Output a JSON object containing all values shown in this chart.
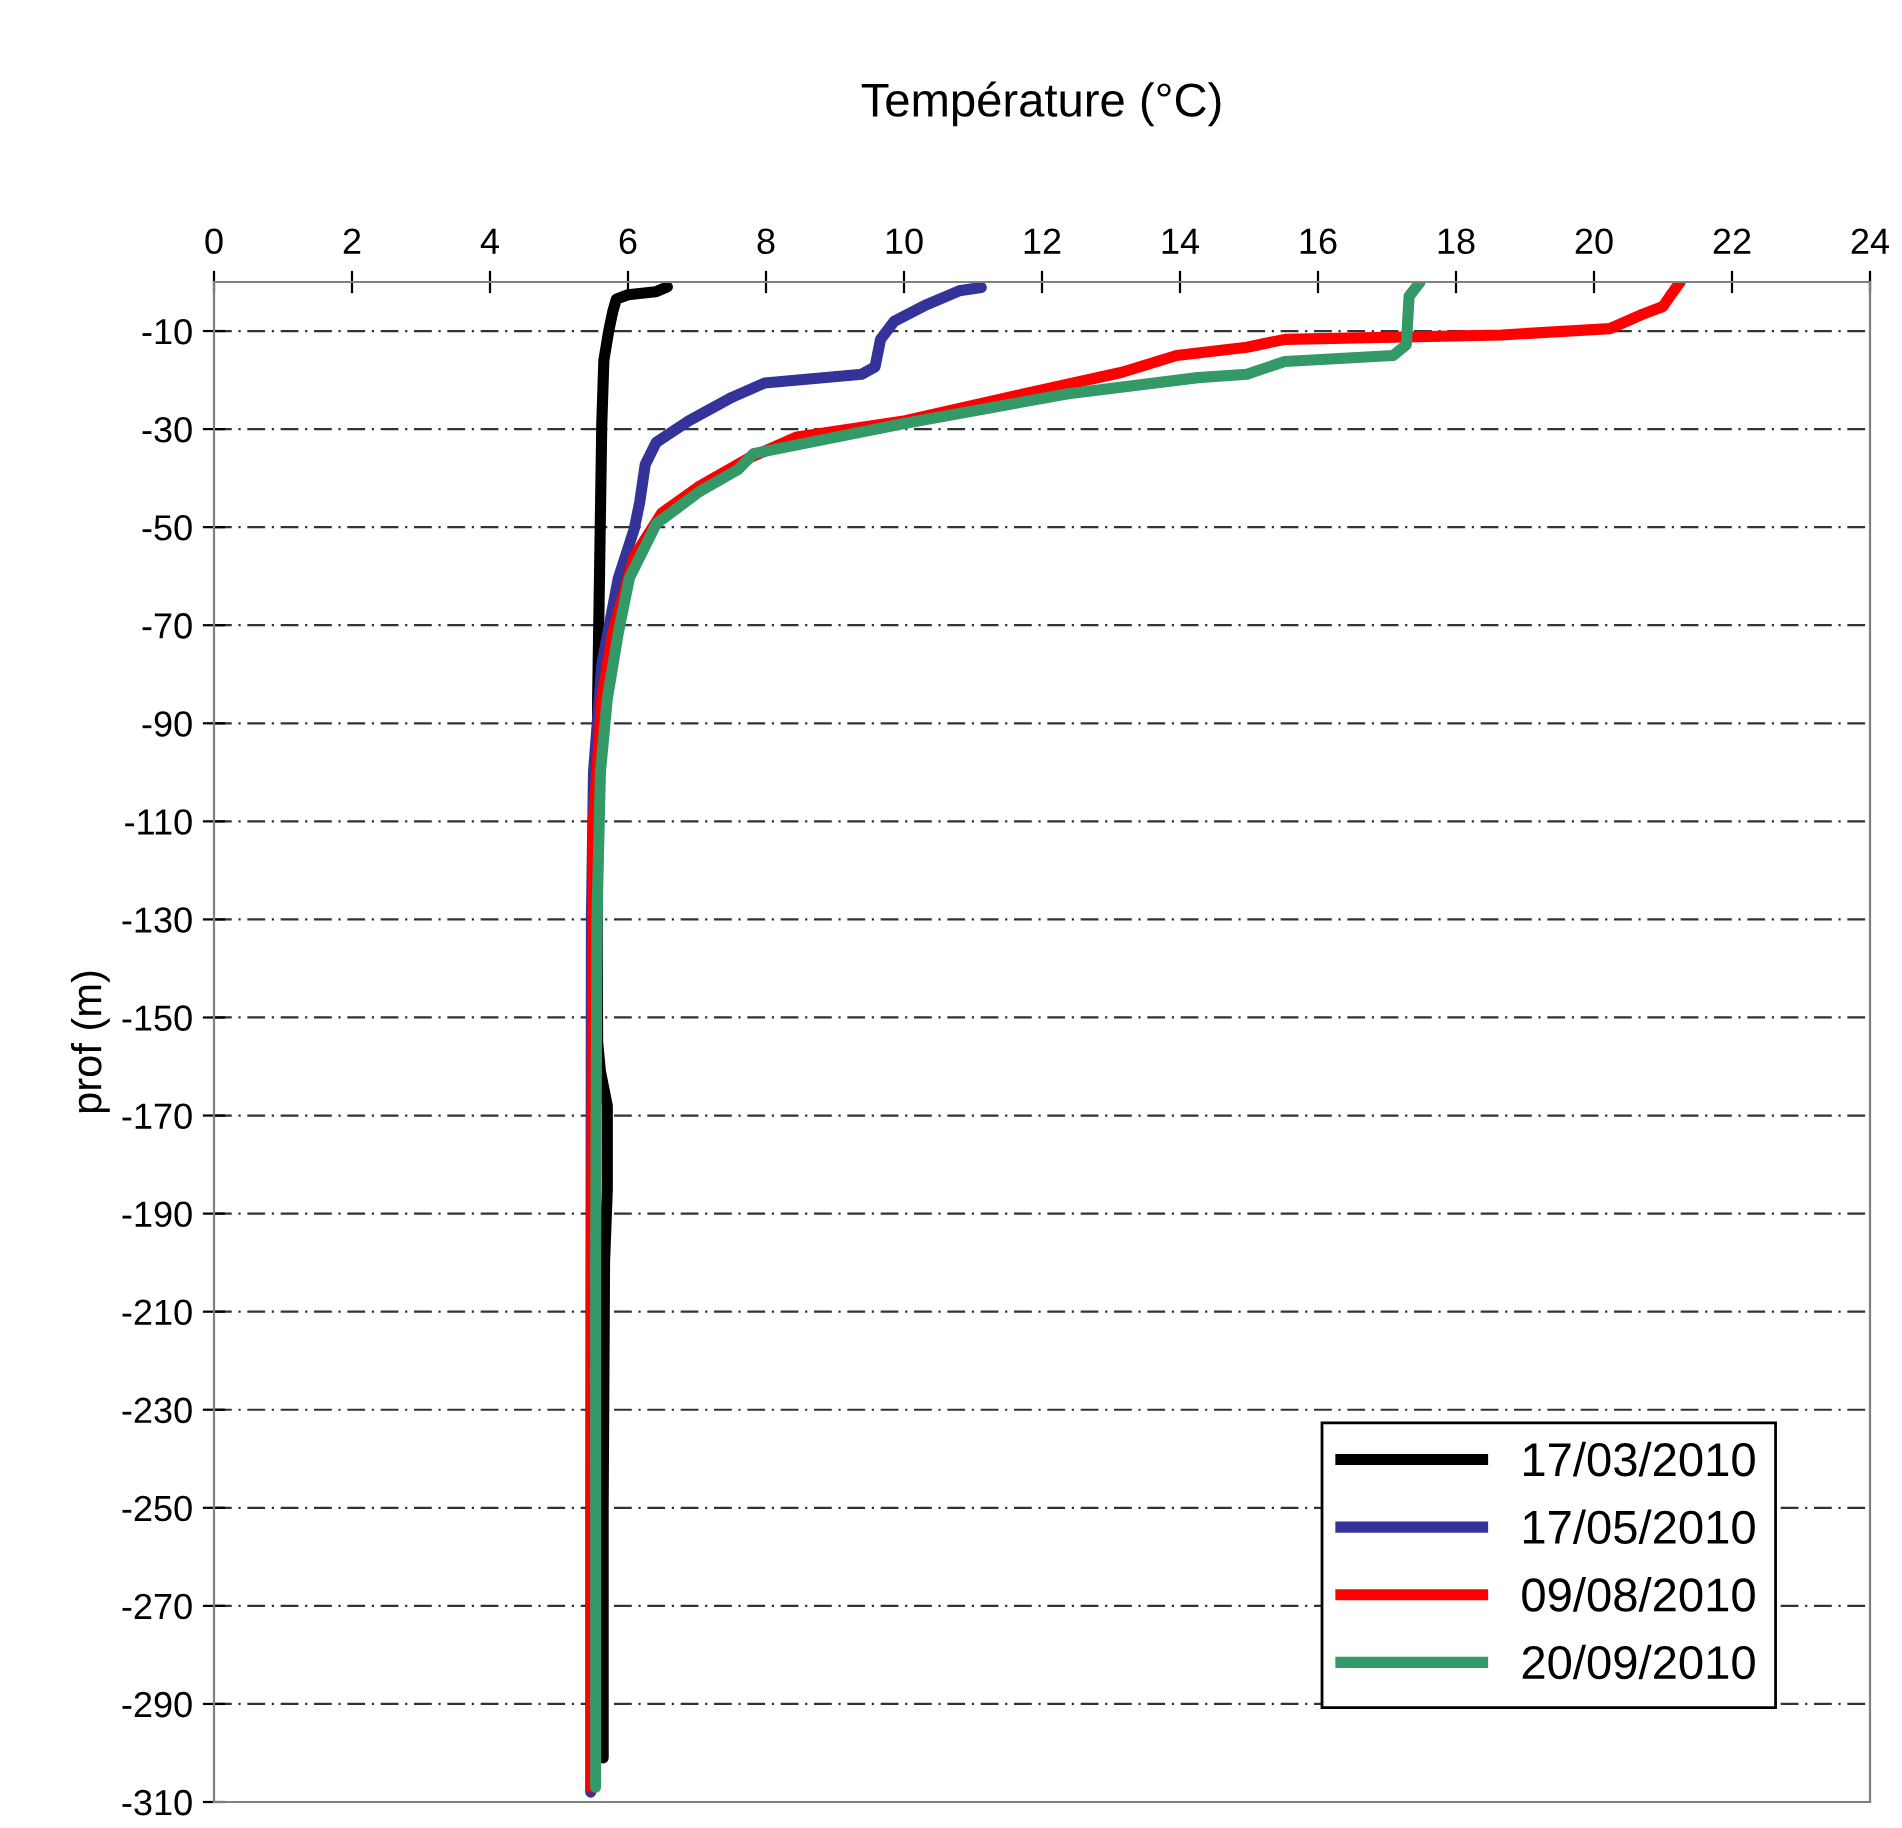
{
  "chart_data": {
    "type": "line",
    "xlabel": "Température (°C)",
    "ylabel": "prof (m)",
    "xlim": [
      0,
      24
    ],
    "xticks": [
      0,
      2,
      4,
      6,
      8,
      10,
      12,
      14,
      16,
      18,
      20,
      22,
      24
    ],
    "ylim": [
      -310,
      0
    ],
    "yticks": [
      -10,
      -30,
      -50,
      -70,
      -90,
      -110,
      -130,
      -150,
      -170,
      -190,
      -210,
      -230,
      -250,
      -270,
      -290,
      -310
    ],
    "grid": "y",
    "legend": "bottom right",
    "marker": "none",
    "line_style": "solid",
    "series": [
      {
        "name": "17/03/2010",
        "color": "#000000",
        "x": [
          6.57,
          6.4,
          6.0,
          5.83,
          5.78,
          5.72,
          5.65,
          5.62,
          5.56,
          5.55,
          5.56,
          5.6,
          5.7,
          5.7,
          5.66,
          5.64,
          5.64
        ],
        "values": [
          -1,
          -2,
          -2.6,
          -3.5,
          -6,
          -10,
          -16,
          -29,
          -85,
          -120,
          -155,
          -161,
          -168,
          -185,
          -200,
          -250,
          -301
        ]
      },
      {
        "name": "17/05/2010",
        "color": "#333399",
        "x": [
          11.12,
          10.8,
          10.33,
          9.86,
          9.66,
          9.58,
          9.39,
          7.98,
          7.51,
          6.88,
          6.41,
          6.25,
          6.17,
          6.09,
          5.86,
          5.62,
          5.5,
          5.47,
          5.46,
          5.46
        ],
        "values": [
          -1.1,
          -1.8,
          -4.6,
          -8,
          -11.7,
          -17.3,
          -18.8,
          -20.6,
          -23.5,
          -28.3,
          -32.7,
          -37.2,
          -44.9,
          -50.4,
          -60.4,
          -78,
          -100,
          -130,
          -250,
          -308
        ]
      },
      {
        "name": "09/08/2010",
        "color": "#ff0000",
        "x": [
          21.25,
          21.1,
          21.0,
          20.7,
          20.23,
          18.66,
          15.52,
          14.97,
          13.95,
          13.16,
          11.75,
          10.02,
          8.45,
          7.74,
          7.04,
          6.49,
          6.09,
          5.78,
          5.62,
          5.5,
          5.47,
          5.47
        ],
        "values": [
          0,
          -2.9,
          -5,
          -6.6,
          -9.5,
          -10.8,
          -11.7,
          -13.3,
          -15,
          -18.4,
          -22.8,
          -28.3,
          -31.6,
          -36,
          -41.6,
          -47.1,
          -56,
          -71.5,
          -85,
          -110,
          -200,
          -307
        ]
      },
      {
        "name": "20/09/2010",
        "color": "#339966",
        "x": [
          17.48,
          17.32,
          17.28,
          17.09,
          15.52,
          14.97,
          14.26,
          12.38,
          10.02,
          7.82,
          7.59,
          7.04,
          6.41,
          6.02,
          5.86,
          5.7,
          5.6,
          5.55,
          5.53,
          5.53
        ],
        "values": [
          0,
          -2.9,
          -12.8,
          -15,
          -16.2,
          -18.8,
          -19.5,
          -22.8,
          -28.8,
          -35,
          -38.3,
          -42.7,
          -49.3,
          -60.4,
          -71.5,
          -85,
          -100,
          -130,
          -200,
          -307
        ]
      }
    ]
  }
}
